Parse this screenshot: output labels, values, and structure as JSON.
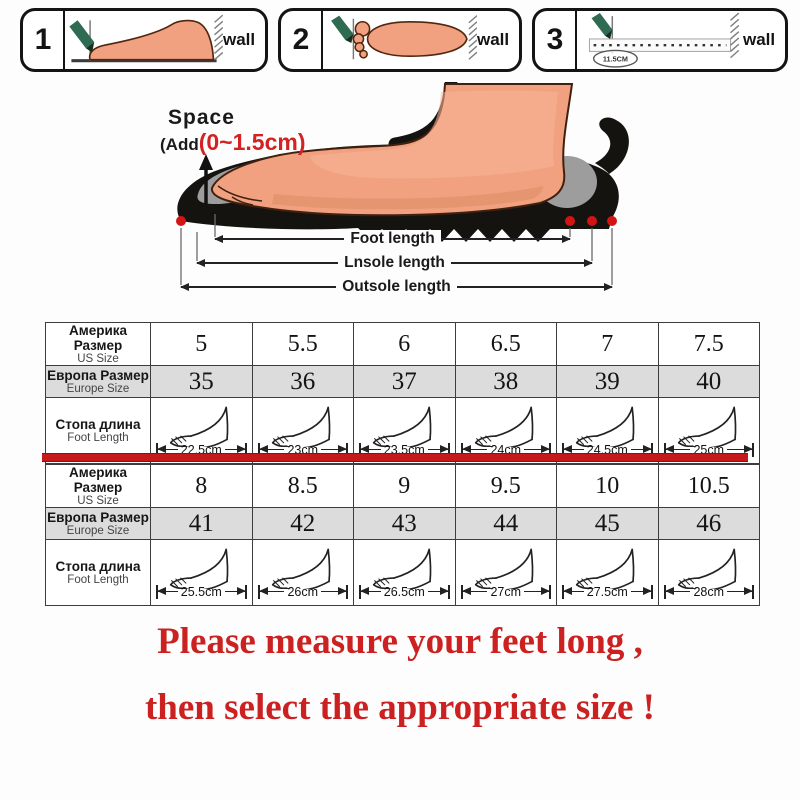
{
  "measure_guide": {
    "panels": [
      {
        "number": "1",
        "wall_label": "wall",
        "icon": "foot-side-view-icon"
      },
      {
        "number": "2",
        "wall_label": "wall",
        "icon": "foot-top-view-icon"
      },
      {
        "number": "3",
        "wall_label": "wall",
        "icon": "ruler-icon",
        "ruler_value": "11.5CM"
      }
    ]
  },
  "fit_diagram": {
    "space_title": "Space",
    "space_prefix": "(Add",
    "space_value": "(0~1.5cm)",
    "dim_labels": [
      "Foot length",
      "Lnsole length",
      "Outsole length"
    ]
  },
  "size_tables": {
    "row_headers": {
      "us": {
        "primary": "Америка Размер",
        "secondary": "US Size"
      },
      "eu": {
        "primary": "Европа Размер",
        "secondary": "Europe Size"
      },
      "foot": {
        "primary": "Стопа длина",
        "secondary": "Foot Length"
      }
    },
    "tables": [
      {
        "us": [
          "5",
          "5.5",
          "6",
          "6.5",
          "7",
          "7.5"
        ],
        "eu": [
          "35",
          "36",
          "37",
          "38",
          "39",
          "40"
        ],
        "foot_cm": [
          "22.5cm",
          "23cm",
          "23.5cm",
          "24cm",
          "24.5cm",
          "25cm"
        ]
      },
      {
        "us": [
          "8",
          "8.5",
          "9",
          "9.5",
          "10",
          "10.5"
        ],
        "eu": [
          "41",
          "42",
          "43",
          "44",
          "45",
          "46"
        ],
        "foot_cm": [
          "25.5cm",
          "26cm",
          "26.5cm",
          "27cm",
          "27.5cm",
          "28cm"
        ]
      }
    ]
  },
  "footer": {
    "line1": "Please measure your feet long ,",
    "line2": "then select the appropriate size !"
  },
  "colors": {
    "accent_red": "#c6191c",
    "text_red": "#cb2121",
    "table_gray": "#dcdcdc",
    "skin": "#f1a180",
    "insole_gray": "#9d9d9d",
    "pencil_green": "#2e6b52",
    "shoe_black": "#151310"
  }
}
